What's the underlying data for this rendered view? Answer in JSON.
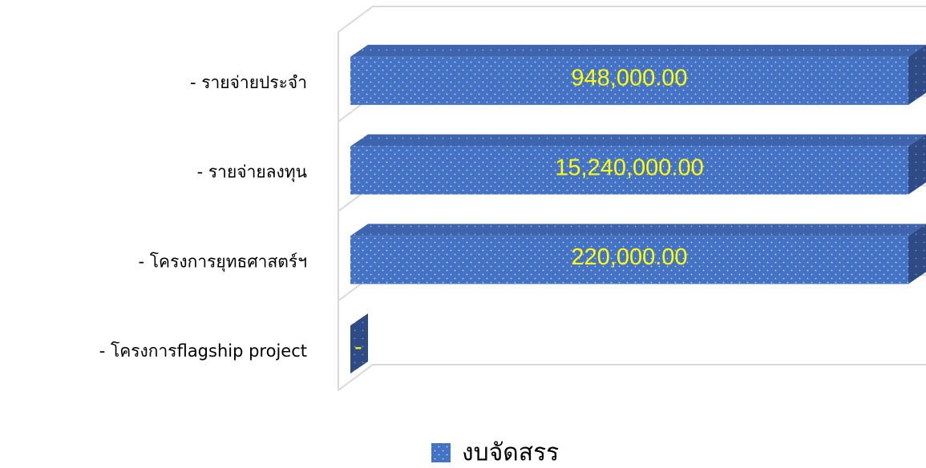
{
  "chart_data": {
    "type": "bar",
    "orientation": "horizontal",
    "stacked_percent": true,
    "categories": [
      "- รายจ่ายประจำ",
      "- รายจ่ายลงทุน",
      "- โครงการยุทธศาสตร์ฯ",
      "- โครงการflagship project"
    ],
    "series": [
      {
        "name": "งบจัดสรร",
        "color": "#4472c4",
        "values": [
          948000,
          15240000,
          220000,
          0
        ],
        "value_labels": [
          "948,000.00",
          "15,240,000.00",
          "220,000.00",
          "-"
        ]
      }
    ],
    "xlim": [
      0,
      100
    ],
    "legend": "bottom"
  }
}
